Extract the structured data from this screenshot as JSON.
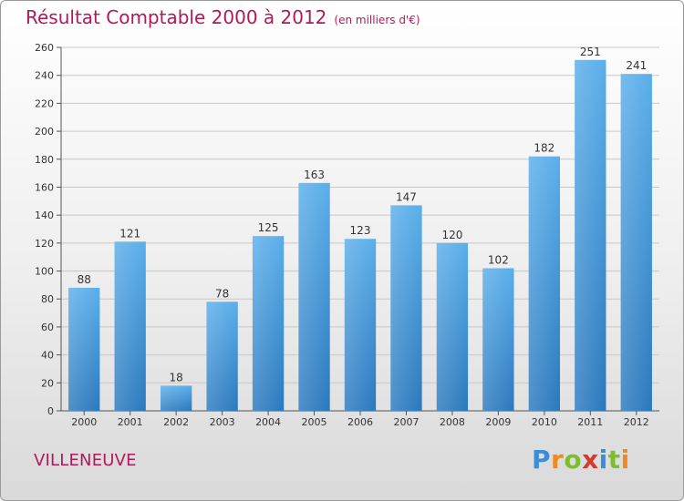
{
  "chart_data": {
    "type": "bar",
    "title": "Résultat Comptable 2000 à 2012",
    "subtitle": "(en milliers d'€)",
    "categories": [
      "2000",
      "2001",
      "2002",
      "2003",
      "2004",
      "2005",
      "2006",
      "2007",
      "2008",
      "2009",
      "2010",
      "2011",
      "2012"
    ],
    "values": [
      88,
      121,
      18,
      78,
      125,
      163,
      123,
      147,
      120,
      102,
      182,
      251,
      241
    ],
    "ylim": [
      0,
      260
    ],
    "yticks": [
      0,
      20,
      40,
      60,
      80,
      100,
      120,
      140,
      160,
      180,
      200,
      220,
      240,
      260
    ],
    "grid": true,
    "bar_color": "#3b8fd6"
  },
  "footer": {
    "city": "VILLENEUVE",
    "brand_letters": [
      {
        "ch": "P",
        "color": "#3a8ed8"
      },
      {
        "ch": "r",
        "color": "#f08a1c"
      },
      {
        "ch": "o",
        "color": "#7cbf2c"
      },
      {
        "ch": "x",
        "color": "#d63a2a"
      },
      {
        "ch": "i",
        "color": "#3a8ed8"
      },
      {
        "ch": "t",
        "color": "#7cbf2c"
      },
      {
        "ch": "i",
        "color": "#f08a1c"
      }
    ]
  }
}
